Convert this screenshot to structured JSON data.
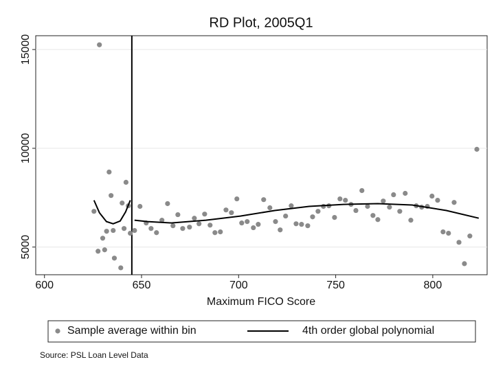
{
  "chart_data": {
    "type": "scatter",
    "title": "RD Plot, 2005Q1",
    "x_label": "Maximum FICO Score",
    "note": "Source: PSL Loan Level Data",
    "xlim": [
      595.5,
      828
    ],
    "xticks": [
      600,
      650,
      700,
      750,
      800
    ],
    "ylim": [
      3600,
      15700
    ],
    "yticks": [
      5000,
      10000,
      15000
    ],
    "grid": true,
    "cutoff": 645,
    "series": [
      {
        "name": "Sample average within bin",
        "mode": "markers",
        "color": "#8a8a8a",
        "x": [
          625.5,
          627.6,
          628.3,
          630,
          631,
          632,
          633.3,
          634.3,
          635.4,
          636,
          639.3,
          640,
          641,
          642,
          643.2,
          644.2,
          646.4,
          649.2,
          652.4,
          654.9,
          657.7,
          660.5,
          663.4,
          666.2,
          668.7,
          671.2,
          674.7,
          677.2,
          679.6,
          682.5,
          685.3,
          687.8,
          690.6,
          693.5,
          696.3,
          699.1,
          701.6,
          704.4,
          707.6,
          710.1,
          712.9,
          716.1,
          719,
          721.4,
          724.2,
          727.1,
          729.6,
          732.4,
          735.6,
          738.1,
          740.9,
          743.7,
          746.5,
          749.4,
          752.2,
          755,
          757.9,
          760.4,
          763.5,
          766.4,
          769.2,
          771.7,
          774.5,
          777.7,
          779.8,
          783,
          785.8,
          788.7,
          791.5,
          794.3,
          797.2,
          799.6,
          802.5,
          805.3,
          808.1,
          811,
          813.5,
          816.3,
          819.1,
          822.7
        ],
        "values": [
          6810,
          4790,
          15240,
          5450,
          4860,
          5800,
          8800,
          7610,
          5840,
          4440,
          3950,
          7230,
          5940,
          8280,
          7090,
          5700,
          5840,
          7060,
          6220,
          5940,
          5730,
          6360,
          7200,
          6080,
          6640,
          5940,
          6010,
          6460,
          6180,
          6670,
          6110,
          5730,
          5770,
          6880,
          6740,
          7440,
          6220,
          6290,
          5980,
          6150,
          7400,
          6990,
          6290,
          5870,
          6570,
          7090,
          6180,
          6150,
          6080,
          6530,
          6810,
          7060,
          7090,
          6500,
          7440,
          7370,
          7160,
          6850,
          7860,
          7060,
          6600,
          6390,
          7330,
          7020,
          7650,
          6810,
          7720,
          6360,
          7090,
          7020,
          7060,
          7580,
          7370,
          5770,
          5700,
          7260,
          5240,
          4160,
          5560,
          9950
        ]
      },
      {
        "name": "4th order global polynomial",
        "mode": "lines",
        "color": "#000000",
        "x": [
          625.5,
          628.3,
          631.9,
          635.4,
          639,
          641.8,
          644.2,
          645,
          646.4,
          653,
          665.5,
          683.2,
          700.9,
          718.6,
          736.3,
          754,
          771.7,
          789.4,
          807,
          823.7
        ],
        "values": [
          7370,
          6740,
          6290,
          6180,
          6320,
          6780,
          7370,
          null,
          6360,
          6290,
          6220,
          6360,
          6570,
          6850,
          7060,
          7160,
          7200,
          7130,
          6850,
          6460
        ]
      }
    ]
  }
}
